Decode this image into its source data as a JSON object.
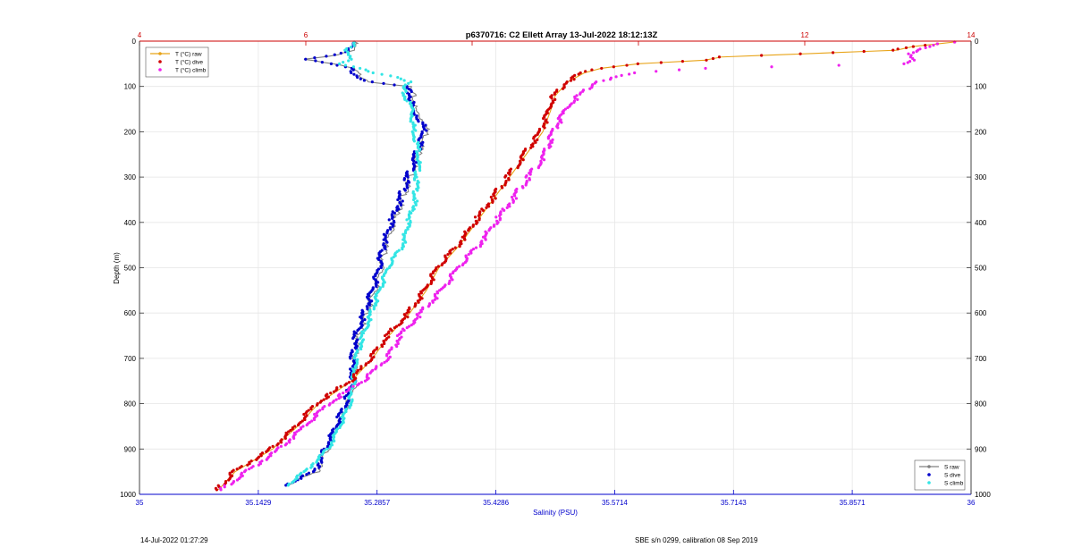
{
  "figure": {
    "title": "p6370716: C2 Ellett Array 13-Jul-2022 18:12:13Z",
    "footer_left": "14-Jul-2022 01:27:29",
    "footer_right": "SBE s/n 0299, calibration 08 Sep 2019"
  },
  "chart_data": {
    "type": "line",
    "ylabel": "Depth (m)",
    "xlabel_bottom": "Salinity (PSU)",
    "ylim": [
      0,
      1000
    ],
    "y_reversed": true,
    "xlim_bottom": [
      35,
      36
    ],
    "xlim_top": [
      4,
      14
    ],
    "bottom_ticks": [
      "35",
      "35.1429",
      "35.2857",
      "35.4286",
      "35.5714",
      "35.7143",
      "35.8571",
      "36"
    ],
    "top_ticks": [
      "4",
      "6",
      "12",
      "14"
    ],
    "y_ticks": [
      "0",
      "100",
      "200",
      "300",
      "400",
      "500",
      "600",
      "700",
      "800",
      "900",
      "1000"
    ],
    "grid": true,
    "colors": {
      "t_raw": "#e8a317",
      "t_dive": "#d00000",
      "t_climb": "#ee22ee",
      "s_raw": "#808080",
      "s_dive": "#0000cc",
      "s_climb": "#33e5e5",
      "top_axis": "#cc0000",
      "bottom_axis": "#0000cc"
    },
    "legend_temp": {
      "placement": "top-left",
      "entries": [
        "T (°C) raw",
        "T (°C) dive",
        "T (°C) climb"
      ]
    },
    "legend_sal": {
      "placement": "bottom-right",
      "entries": [
        "S raw",
        "S dive",
        "S climb"
      ]
    },
    "temperature": {
      "depth": [
        2,
        6,
        12,
        20,
        28,
        35,
        42,
        50,
        60,
        70,
        90,
        120,
        150,
        200,
        250,
        300,
        350,
        400,
        450,
        500,
        550,
        600,
        650,
        700,
        750,
        800,
        850,
        900,
        950,
        990
      ],
      "dive": [
        13.8,
        13.6,
        13.3,
        13.1,
        12.0,
        11.0,
        10.8,
        10.0,
        9.55,
        9.35,
        9.15,
        9.0,
        8.95,
        8.85,
        8.65,
        8.45,
        8.25,
        8.05,
        7.85,
        7.6,
        7.45,
        7.25,
        7.0,
        6.8,
        6.55,
        6.15,
        5.9,
        5.6,
        5.15,
        4.95
      ],
      "climb": [
        13.8,
        13.6,
        13.5,
        13.4,
        13.3,
        13.3,
        13.3,
        13.2,
        10.8,
        10.0,
        9.5,
        9.3,
        9.15,
        9.0,
        8.9,
        8.7,
        8.5,
        8.3,
        8.1,
        7.85,
        7.65,
        7.4,
        7.15,
        7.0,
        6.7,
        6.3,
        6.0,
        5.7,
        5.3,
        5.0
      ]
    },
    "salinity": {
      "depth": [
        2,
        10,
        20,
        30,
        40,
        50,
        60,
        70,
        80,
        90,
        100,
        120,
        150,
        180,
        200,
        250,
        300,
        350,
        400,
        450,
        500,
        550,
        600,
        650,
        700,
        750,
        800,
        850,
        900,
        950,
        980
      ],
      "dive": [
        35.258,
        35.257,
        35.255,
        35.24,
        35.2,
        35.23,
        35.255,
        35.26,
        35.268,
        35.278,
        35.322,
        35.328,
        35.33,
        35.342,
        35.345,
        35.335,
        35.325,
        35.315,
        35.305,
        35.295,
        35.29,
        35.282,
        35.272,
        35.262,
        35.258,
        35.258,
        35.25,
        35.238,
        35.225,
        35.212,
        35.175
      ],
      "climb": [
        35.258,
        35.258,
        35.25,
        35.255,
        35.255,
        35.24,
        35.265,
        35.285,
        35.315,
        35.325,
        35.318,
        35.32,
        35.33,
        35.33,
        35.332,
        35.338,
        35.335,
        35.333,
        35.325,
        35.318,
        35.3,
        35.29,
        35.28,
        35.27,
        35.262,
        35.258,
        35.255,
        35.242,
        35.228,
        35.2,
        35.178
      ]
    }
  }
}
